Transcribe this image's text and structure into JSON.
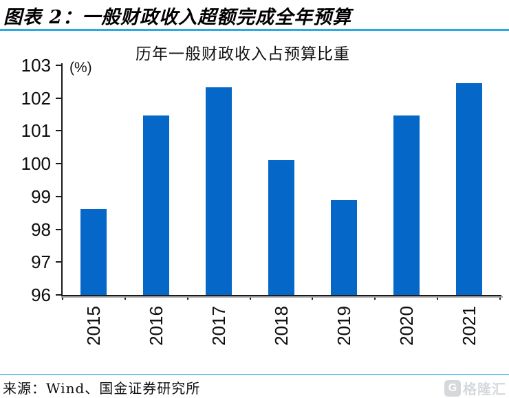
{
  "header": {
    "title": "图表 2：一般财政收入超额完成全年预算"
  },
  "chart_data": {
    "type": "bar",
    "title": "历年一般财政收入占预算比重",
    "unit_label": "(%)",
    "categories": [
      "2015",
      "2016",
      "2017",
      "2018",
      "2019",
      "2020",
      "2021"
    ],
    "values": [
      98.63,
      101.48,
      102.33,
      100.11,
      98.89,
      101.46,
      102.46
    ],
    "ylim": [
      96,
      103
    ],
    "yticks": [
      96,
      97,
      98,
      99,
      100,
      101,
      102,
      103
    ],
    "xlabel": "",
    "ylabel": "(%)",
    "grid": false,
    "legend_position": "none",
    "bar_color": "#0568C9"
  },
  "footer": {
    "source": "来源：Wind、国金证券研究所",
    "logo": {
      "icon": "gelonghui-G",
      "text": "格隆汇"
    }
  },
  "colors": {
    "bar": "#0568C9",
    "divider": "#29ABE2",
    "axis": "#1A1A1A",
    "logo_gray": "#D5D9DC"
  }
}
